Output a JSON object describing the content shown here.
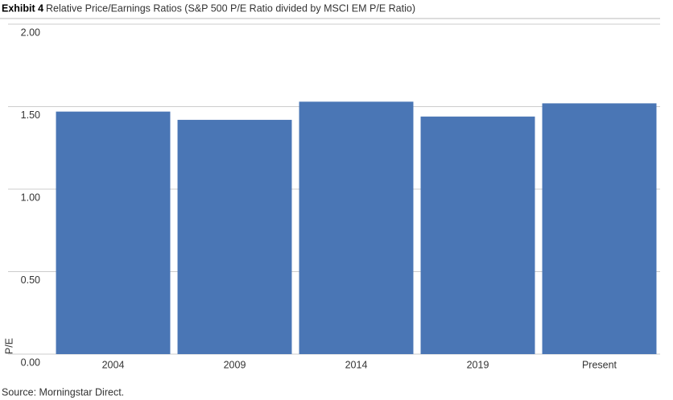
{
  "chart_data": {
    "type": "bar",
    "title": "Exhibit 4",
    "subtitle": "Relative Price/Earnings Ratios (S&P 500 P/E Ratio divided by MSCI EM P/E Ratio)",
    "y_label": "P/E",
    "source": "Source: Morningstar Direct.",
    "categories": [
      "2004",
      "2009",
      "2014",
      "2019",
      "Present"
    ],
    "values": [
      1.47,
      1.42,
      1.53,
      1.44,
      1.52
    ],
    "color": "#4a76b5",
    "ylim": [
      0,
      2
    ],
    "yticks": [
      {
        "value": 0,
        "label": "0.00"
      },
      {
        "value": 0.5,
        "label": "0.50"
      },
      {
        "value": 1,
        "label": "1.00"
      },
      {
        "value": 1.5,
        "label": "1.50"
      },
      {
        "value": 2,
        "label": "2.00"
      }
    ],
    "grid": true
  }
}
